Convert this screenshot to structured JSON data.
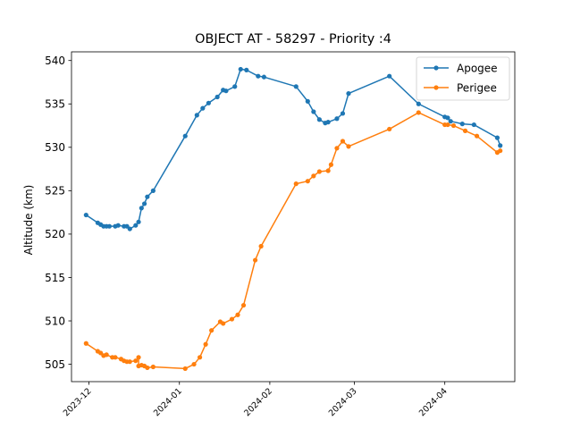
{
  "chart_data": {
    "type": "line",
    "title": "OBJECT AT - 58297 - Priority :4",
    "xlabel": "",
    "ylabel": "Altitude (km)",
    "x_axis_type": "date",
    "xlim": [
      "2023-11-25",
      "2024-04-25"
    ],
    "ylim": [
      503,
      541
    ],
    "yticks": [
      505,
      510,
      515,
      520,
      525,
      530,
      535,
      540
    ],
    "xticks": [
      {
        "date": "2023-12-01",
        "label": "2023-12"
      },
      {
        "date": "2024-01-01",
        "label": "2024-01"
      },
      {
        "date": "2024-02-01",
        "label": "2024-02"
      },
      {
        "date": "2024-03-01",
        "label": "2024-03"
      },
      {
        "date": "2024-04-01",
        "label": "2024-04"
      }
    ],
    "grid": false,
    "legend_position": "top-right",
    "series": [
      {
        "name": "Apogee",
        "color": "#1f77b4",
        "marker": "circle",
        "points": [
          [
            "2023-11-30",
            522.2
          ],
          [
            "2023-12-04",
            521.3
          ],
          [
            "2023-12-05",
            521.1
          ],
          [
            "2023-12-06",
            520.9
          ],
          [
            "2023-12-07",
            520.9
          ],
          [
            "2023-12-08",
            520.9
          ],
          [
            "2023-12-10",
            520.9
          ],
          [
            "2023-12-11",
            521.0
          ],
          [
            "2023-12-13",
            520.9
          ],
          [
            "2023-12-14",
            520.9
          ],
          [
            "2023-12-15",
            520.6
          ],
          [
            "2023-12-17",
            521.0
          ],
          [
            "2023-12-18",
            521.4
          ],
          [
            "2023-12-19",
            523.0
          ],
          [
            "2023-12-20",
            523.5
          ],
          [
            "2023-12-21",
            524.3
          ],
          [
            "2023-12-23",
            525.0
          ],
          [
            "2024-01-03",
            531.3
          ],
          [
            "2024-01-07",
            533.7
          ],
          [
            "2024-01-09",
            534.5
          ],
          [
            "2024-01-11",
            535.1
          ],
          [
            "2024-01-14",
            535.8
          ],
          [
            "2024-01-16",
            536.6
          ],
          [
            "2024-01-17",
            536.5
          ],
          [
            "2024-01-20",
            537.0
          ],
          [
            "2024-01-22",
            539.0
          ],
          [
            "2024-01-24",
            538.9
          ],
          [
            "2024-01-28",
            538.2
          ],
          [
            "2024-01-30",
            538.1
          ],
          [
            "2024-02-10",
            537.0
          ],
          [
            "2024-02-14",
            535.3
          ],
          [
            "2024-02-16",
            534.1
          ],
          [
            "2024-02-18",
            533.2
          ],
          [
            "2024-02-20",
            532.8
          ],
          [
            "2024-02-21",
            532.9
          ],
          [
            "2024-02-24",
            533.3
          ],
          [
            "2024-02-26",
            533.9
          ],
          [
            "2024-02-28",
            536.2
          ],
          [
            "2024-03-13",
            538.2
          ],
          [
            "2024-03-23",
            535.0
          ],
          [
            "2024-04-01",
            533.5
          ],
          [
            "2024-04-02",
            533.4
          ],
          [
            "2024-04-03",
            533.0
          ],
          [
            "2024-04-07",
            532.7
          ],
          [
            "2024-04-11",
            532.6
          ],
          [
            "2024-04-19",
            531.1
          ],
          [
            "2024-04-20",
            530.2
          ]
        ]
      },
      {
        "name": "Perigee",
        "color": "#ff7f0e",
        "marker": "circle",
        "points": [
          [
            "2023-11-30",
            507.4
          ],
          [
            "2023-12-04",
            506.5
          ],
          [
            "2023-12-05",
            506.3
          ],
          [
            "2023-12-06",
            506.0
          ],
          [
            "2023-12-07",
            506.1
          ],
          [
            "2023-12-09",
            505.8
          ],
          [
            "2023-12-10",
            505.8
          ],
          [
            "2023-12-12",
            505.6
          ],
          [
            "2023-12-13",
            505.4
          ],
          [
            "2023-12-14",
            505.3
          ],
          [
            "2023-12-15",
            505.3
          ],
          [
            "2023-12-17",
            505.4
          ],
          [
            "2023-12-18",
            505.8
          ],
          [
            "2023-12-18",
            504.8
          ],
          [
            "2023-12-19",
            504.9
          ],
          [
            "2023-12-20",
            504.8
          ],
          [
            "2023-12-21",
            504.6
          ],
          [
            "2023-12-23",
            504.7
          ],
          [
            "2024-01-03",
            504.5
          ],
          [
            "2024-01-06",
            505.0
          ],
          [
            "2024-01-08",
            505.8
          ],
          [
            "2024-01-10",
            507.3
          ],
          [
            "2024-01-12",
            508.9
          ],
          [
            "2024-01-15",
            509.9
          ],
          [
            "2024-01-16",
            509.7
          ],
          [
            "2024-01-19",
            510.2
          ],
          [
            "2024-01-21",
            510.7
          ],
          [
            "2024-01-23",
            511.8
          ],
          [
            "2024-01-27",
            517.0
          ],
          [
            "2024-01-29",
            518.6
          ],
          [
            "2024-02-10",
            525.8
          ],
          [
            "2024-02-14",
            526.1
          ],
          [
            "2024-02-16",
            526.7
          ],
          [
            "2024-02-18",
            527.2
          ],
          [
            "2024-02-21",
            527.3
          ],
          [
            "2024-02-22",
            528.0
          ],
          [
            "2024-02-24",
            529.9
          ],
          [
            "2024-02-26",
            530.7
          ],
          [
            "2024-02-28",
            530.1
          ],
          [
            "2024-03-13",
            532.1
          ],
          [
            "2024-03-23",
            534.0
          ],
          [
            "2024-04-01",
            532.6
          ],
          [
            "2024-04-02",
            532.6
          ],
          [
            "2024-04-04",
            532.5
          ],
          [
            "2024-04-08",
            531.9
          ],
          [
            "2024-04-12",
            531.3
          ],
          [
            "2024-04-19",
            529.4
          ],
          [
            "2024-04-20",
            529.6
          ]
        ]
      }
    ]
  }
}
